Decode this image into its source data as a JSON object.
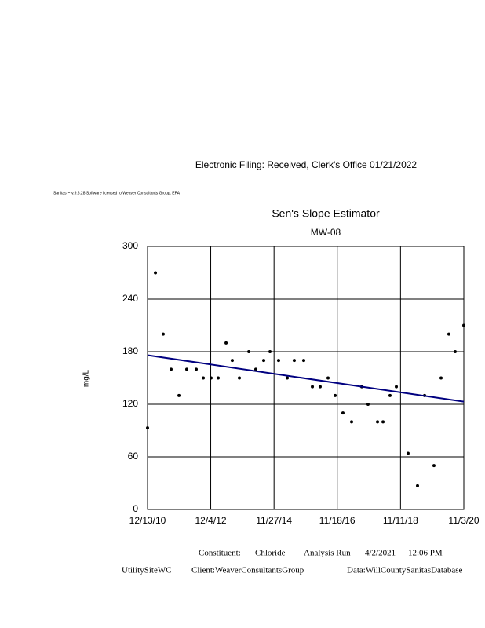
{
  "header": "Electronic Filing: Received, Clerk's Office 01/21/2022",
  "license": "Sanitas™ v.9.6.28 Software licensed to Weaver Consultants Group. EPA",
  "chart_data": {
    "type": "scatter",
    "title": "Sen's Slope Estimator",
    "subtitle": "MW-08",
    "y_label": "mg/L",
    "grid": true,
    "xlim": [
      "2010-12-13",
      "2020-11-03"
    ],
    "xticks": [
      {
        "value": "2010-12-13",
        "label": "12/13/10"
      },
      {
        "value": "2012-12-04",
        "label": "12/4/12"
      },
      {
        "value": "2014-11-27",
        "label": "11/27/14"
      },
      {
        "value": "2016-11-18",
        "label": "11/18/16"
      },
      {
        "value": "2018-11-11",
        "label": "11/11/18"
      },
      {
        "value": "2020-11-03",
        "label": "11/3/20"
      }
    ],
    "ylim": [
      0,
      300
    ],
    "yticks": [
      0,
      60,
      120,
      180,
      240,
      300
    ],
    "series": [
      {
        "color": "#000000",
        "x": [
          "2010-12-13",
          "2011-03-13",
          "2011-06-10",
          "2011-09-08",
          "2011-12-07",
          "2012-03-05",
          "2012-06-21",
          "2012-09-10",
          "2012-12-08",
          "2013-02-27",
          "2013-05-28",
          "2013-08-07",
          "2013-10-27",
          "2014-02-12",
          "2014-05-03",
          "2014-08-01",
          "2014-10-12",
          "2015-01-18",
          "2015-04-27",
          "2015-07-16",
          "2015-11-01",
          "2016-02-08",
          "2016-05-07",
          "2016-08-05",
          "2016-10-25",
          "2017-01-22",
          "2017-05-01",
          "2017-08-25",
          "2017-11-05",
          "2018-02-21",
          "2018-04-25",
          "2018-07-14",
          "2018-09-24",
          "2019-02-05",
          "2019-05-24",
          "2019-08-13",
          "2019-11-28",
          "2020-02-17",
          "2020-05-16",
          "2020-07-27",
          "2020-11-03"
        ],
        "values": [
          93,
          270,
          200,
          160,
          130,
          160,
          160,
          150,
          150,
          150,
          190,
          170,
          150,
          180,
          160,
          170,
          180,
          170,
          150,
          170,
          170,
          140,
          140,
          150,
          130,
          110,
          100,
          140,
          120,
          100,
          100,
          130,
          140,
          64,
          27,
          130,
          50,
          150,
          200,
          180,
          210
        ]
      }
    ],
    "trend": {
      "color": "#000080",
      "x": [
        "2010-12-13",
        "2020-11-03"
      ],
      "values": [
        176,
        123
      ]
    }
  },
  "footer": {
    "constituent": "Constituent:",
    "constituent_value": "Chloride",
    "analysis": "Analysis Run",
    "date": "4/2/2021",
    "time": "12:06 PM",
    "site": "UtilitySiteWC",
    "client": "Client:WeaverConsultantsGroup",
    "database": "Data:WillCountySanitasDatabase"
  }
}
